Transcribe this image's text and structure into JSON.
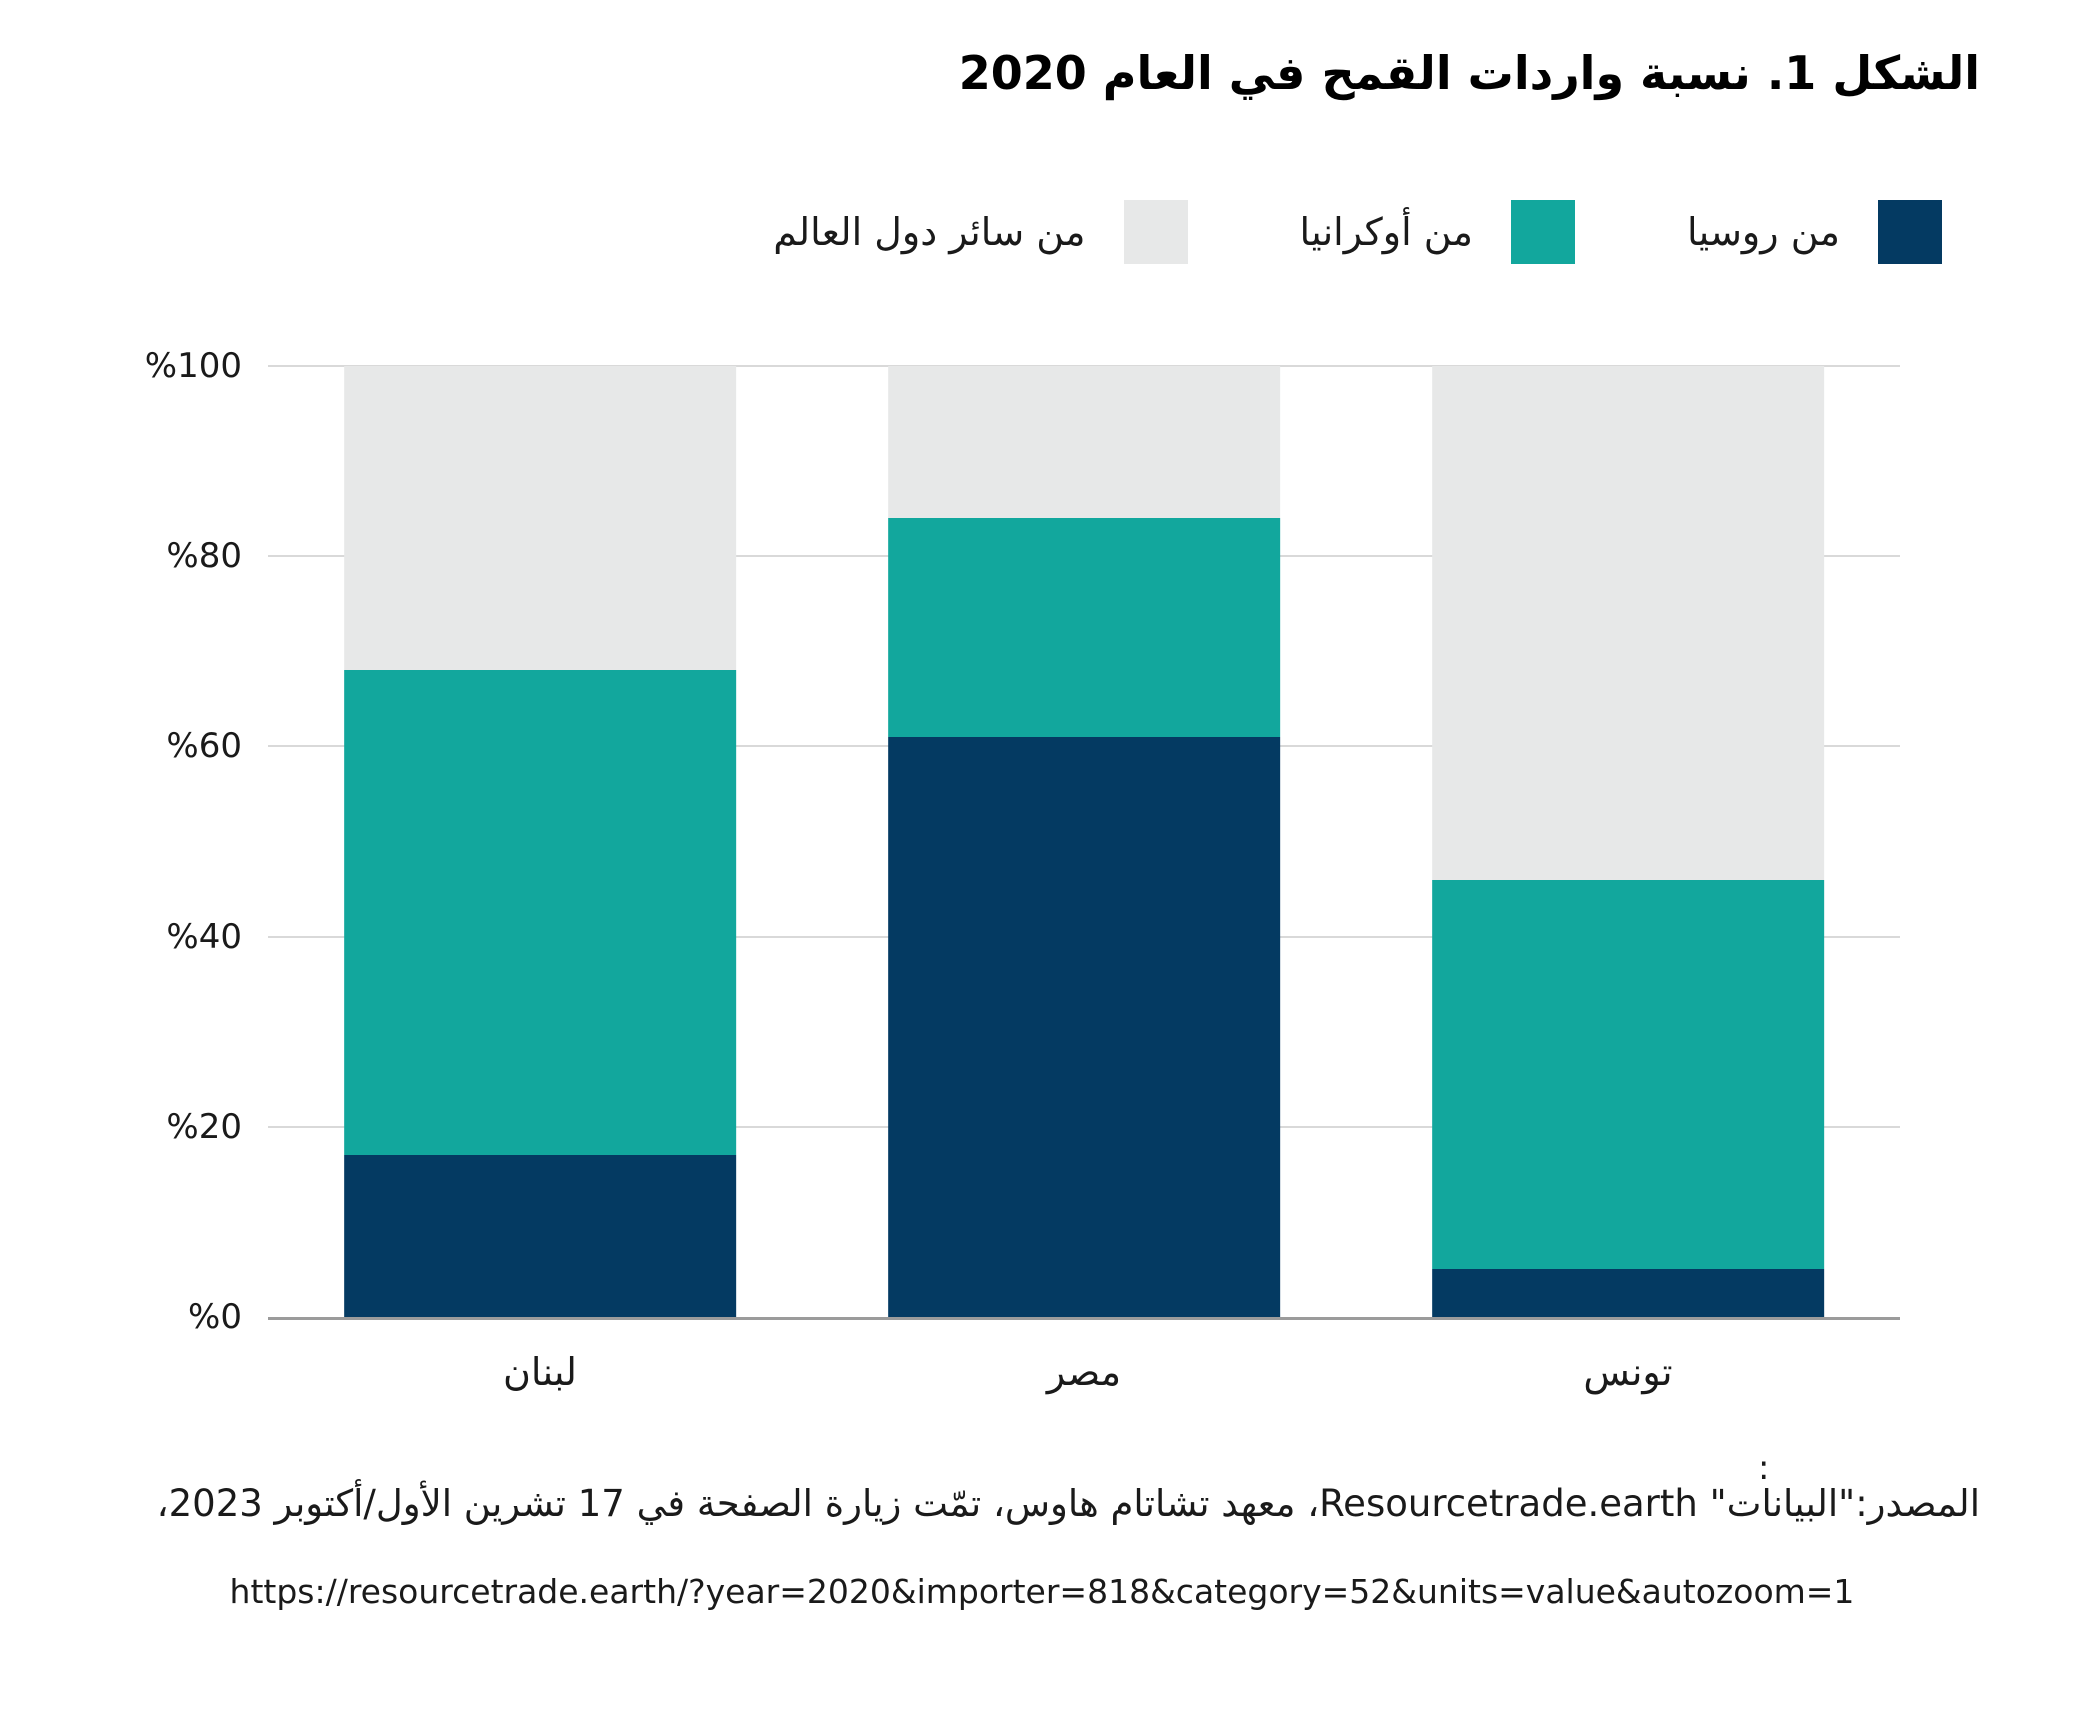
{
  "chart_data": {
    "type": "bar",
    "stacked": true,
    "title": "الشكل 1. نسبة واردات القمح في العام 2020",
    "categories": [
      "لبنان",
      "مصر",
      "تونس"
    ],
    "series": [
      {
        "name": "من روسيا",
        "color": "#043a62",
        "values": [
          17,
          61,
          5
        ]
      },
      {
        "name": "من أوكرانيا",
        "color": "#12a79d",
        "values": [
          51,
          23,
          41
        ]
      },
      {
        "name": "من سائر دول العالم",
        "color": "#e7e8e8",
        "values": [
          32,
          16,
          54
        ]
      }
    ],
    "ylim": [
      0,
      100
    ],
    "yticks": [
      {
        "value": 0,
        "label": "%0"
      },
      {
        "value": 20,
        "label": "%20"
      },
      {
        "value": 40,
        "label": "%40"
      },
      {
        "value": 60,
        "label": "%60"
      },
      {
        "value": 80,
        "label": "%80"
      },
      {
        "value": 100,
        "label": "%100"
      }
    ],
    "grid": true,
    "legend_position": "top",
    "colors": {
      "gridline": "#d9d9d9",
      "baseline": "#9b9b9b"
    }
  },
  "source": {
    "colon": ":",
    "line1": "المصدر:\"البيانات\" Resourcetrade.earth، معهد تشاتام هاوس، تمّت زيارة الصفحة في 17 تشرين الأول/أكتوبر 2023،",
    "url": "https://resourcetrade.earth/?year=2020&importer=818&category=52&units=value&autozoom=1"
  }
}
